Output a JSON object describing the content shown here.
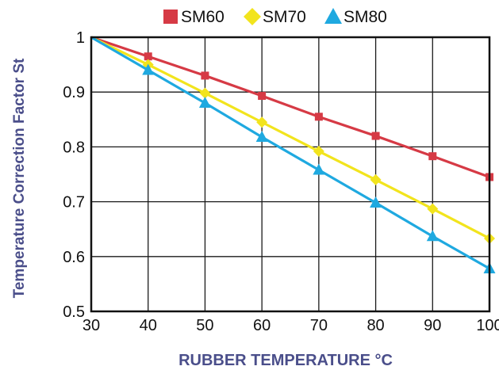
{
  "chart_data": {
    "type": "line",
    "title": "",
    "xlabel": "RUBBER TEMPERATURE °C",
    "ylabel": "Temperature Correction Factor St",
    "xlim": [
      30,
      100
    ],
    "ylim": [
      0.5,
      1.0
    ],
    "x_ticks": [
      "30",
      "40",
      "50",
      "60",
      "70",
      "80",
      "90",
      "100"
    ],
    "y_ticks": [
      "0.5",
      "0.6",
      "0.7",
      "0.8",
      "0.9",
      "1"
    ],
    "grid": true,
    "legend_position": "top",
    "label_color": "#4a4e8a",
    "series": [
      {
        "name": "SM60",
        "marker": "square",
        "color": "#d63a45",
        "x": [
          30,
          40,
          50,
          60,
          70,
          80,
          90,
          100
        ],
        "y": [
          1.0,
          0.965,
          0.93,
          0.893,
          0.855,
          0.82,
          0.783,
          0.745
        ]
      },
      {
        "name": "SM70",
        "marker": "diamond",
        "color": "#f2e41d",
        "x": [
          30,
          40,
          50,
          60,
          70,
          80,
          90,
          100
        ],
        "y": [
          1.0,
          0.95,
          0.898,
          0.845,
          0.792,
          0.74,
          0.687,
          0.633
        ]
      },
      {
        "name": "SM80",
        "marker": "triangle",
        "color": "#1fa9e0",
        "x": [
          30,
          40,
          50,
          60,
          70,
          80,
          90,
          100
        ],
        "y": [
          1.0,
          0.94,
          0.88,
          0.818,
          0.758,
          0.698,
          0.637,
          0.578
        ]
      }
    ]
  }
}
